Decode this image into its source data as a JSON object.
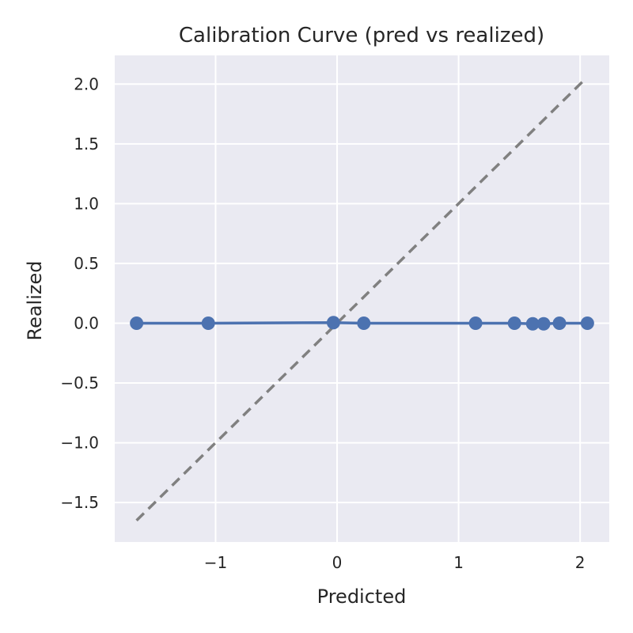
{
  "chart_data": {
    "type": "line",
    "title": "Calibration Curve (pred vs realized)",
    "xlabel": "Predicted",
    "ylabel": "Realized",
    "xlim": [
      -1.83,
      2.24
    ],
    "ylim": [
      -1.83,
      2.24
    ],
    "xticks": [
      -1,
      0,
      1,
      2
    ],
    "xtick_labels": [
      "−1",
      "0",
      "1",
      "2"
    ],
    "yticks": [
      -1.5,
      -1.0,
      -0.5,
      0.0,
      0.5,
      1.0,
      1.5,
      2.0
    ],
    "ytick_labels": [
      "−1.5",
      "−1.0",
      "−0.5",
      "0.0",
      "0.5",
      "1.0",
      "1.5",
      "2.0"
    ],
    "grid": true,
    "background_color": "#eaeaf2",
    "grid_color": "#ffffff",
    "series": [
      {
        "style": "line-markers",
        "color": "#4c72b0",
        "x": [
          -1.65,
          -1.06,
          -0.03,
          0.22,
          1.14,
          1.46,
          1.61,
          1.7,
          1.83,
          2.06
        ],
        "y": [
          0.0,
          0.0,
          0.005,
          0.0,
          0.0,
          0.0,
          -0.005,
          -0.005,
          0.0,
          0.0
        ]
      },
      {
        "style": "dashed",
        "color": "#808080",
        "x": [
          -1.65,
          2.05
        ],
        "y": [
          -1.65,
          2.05
        ]
      }
    ]
  }
}
